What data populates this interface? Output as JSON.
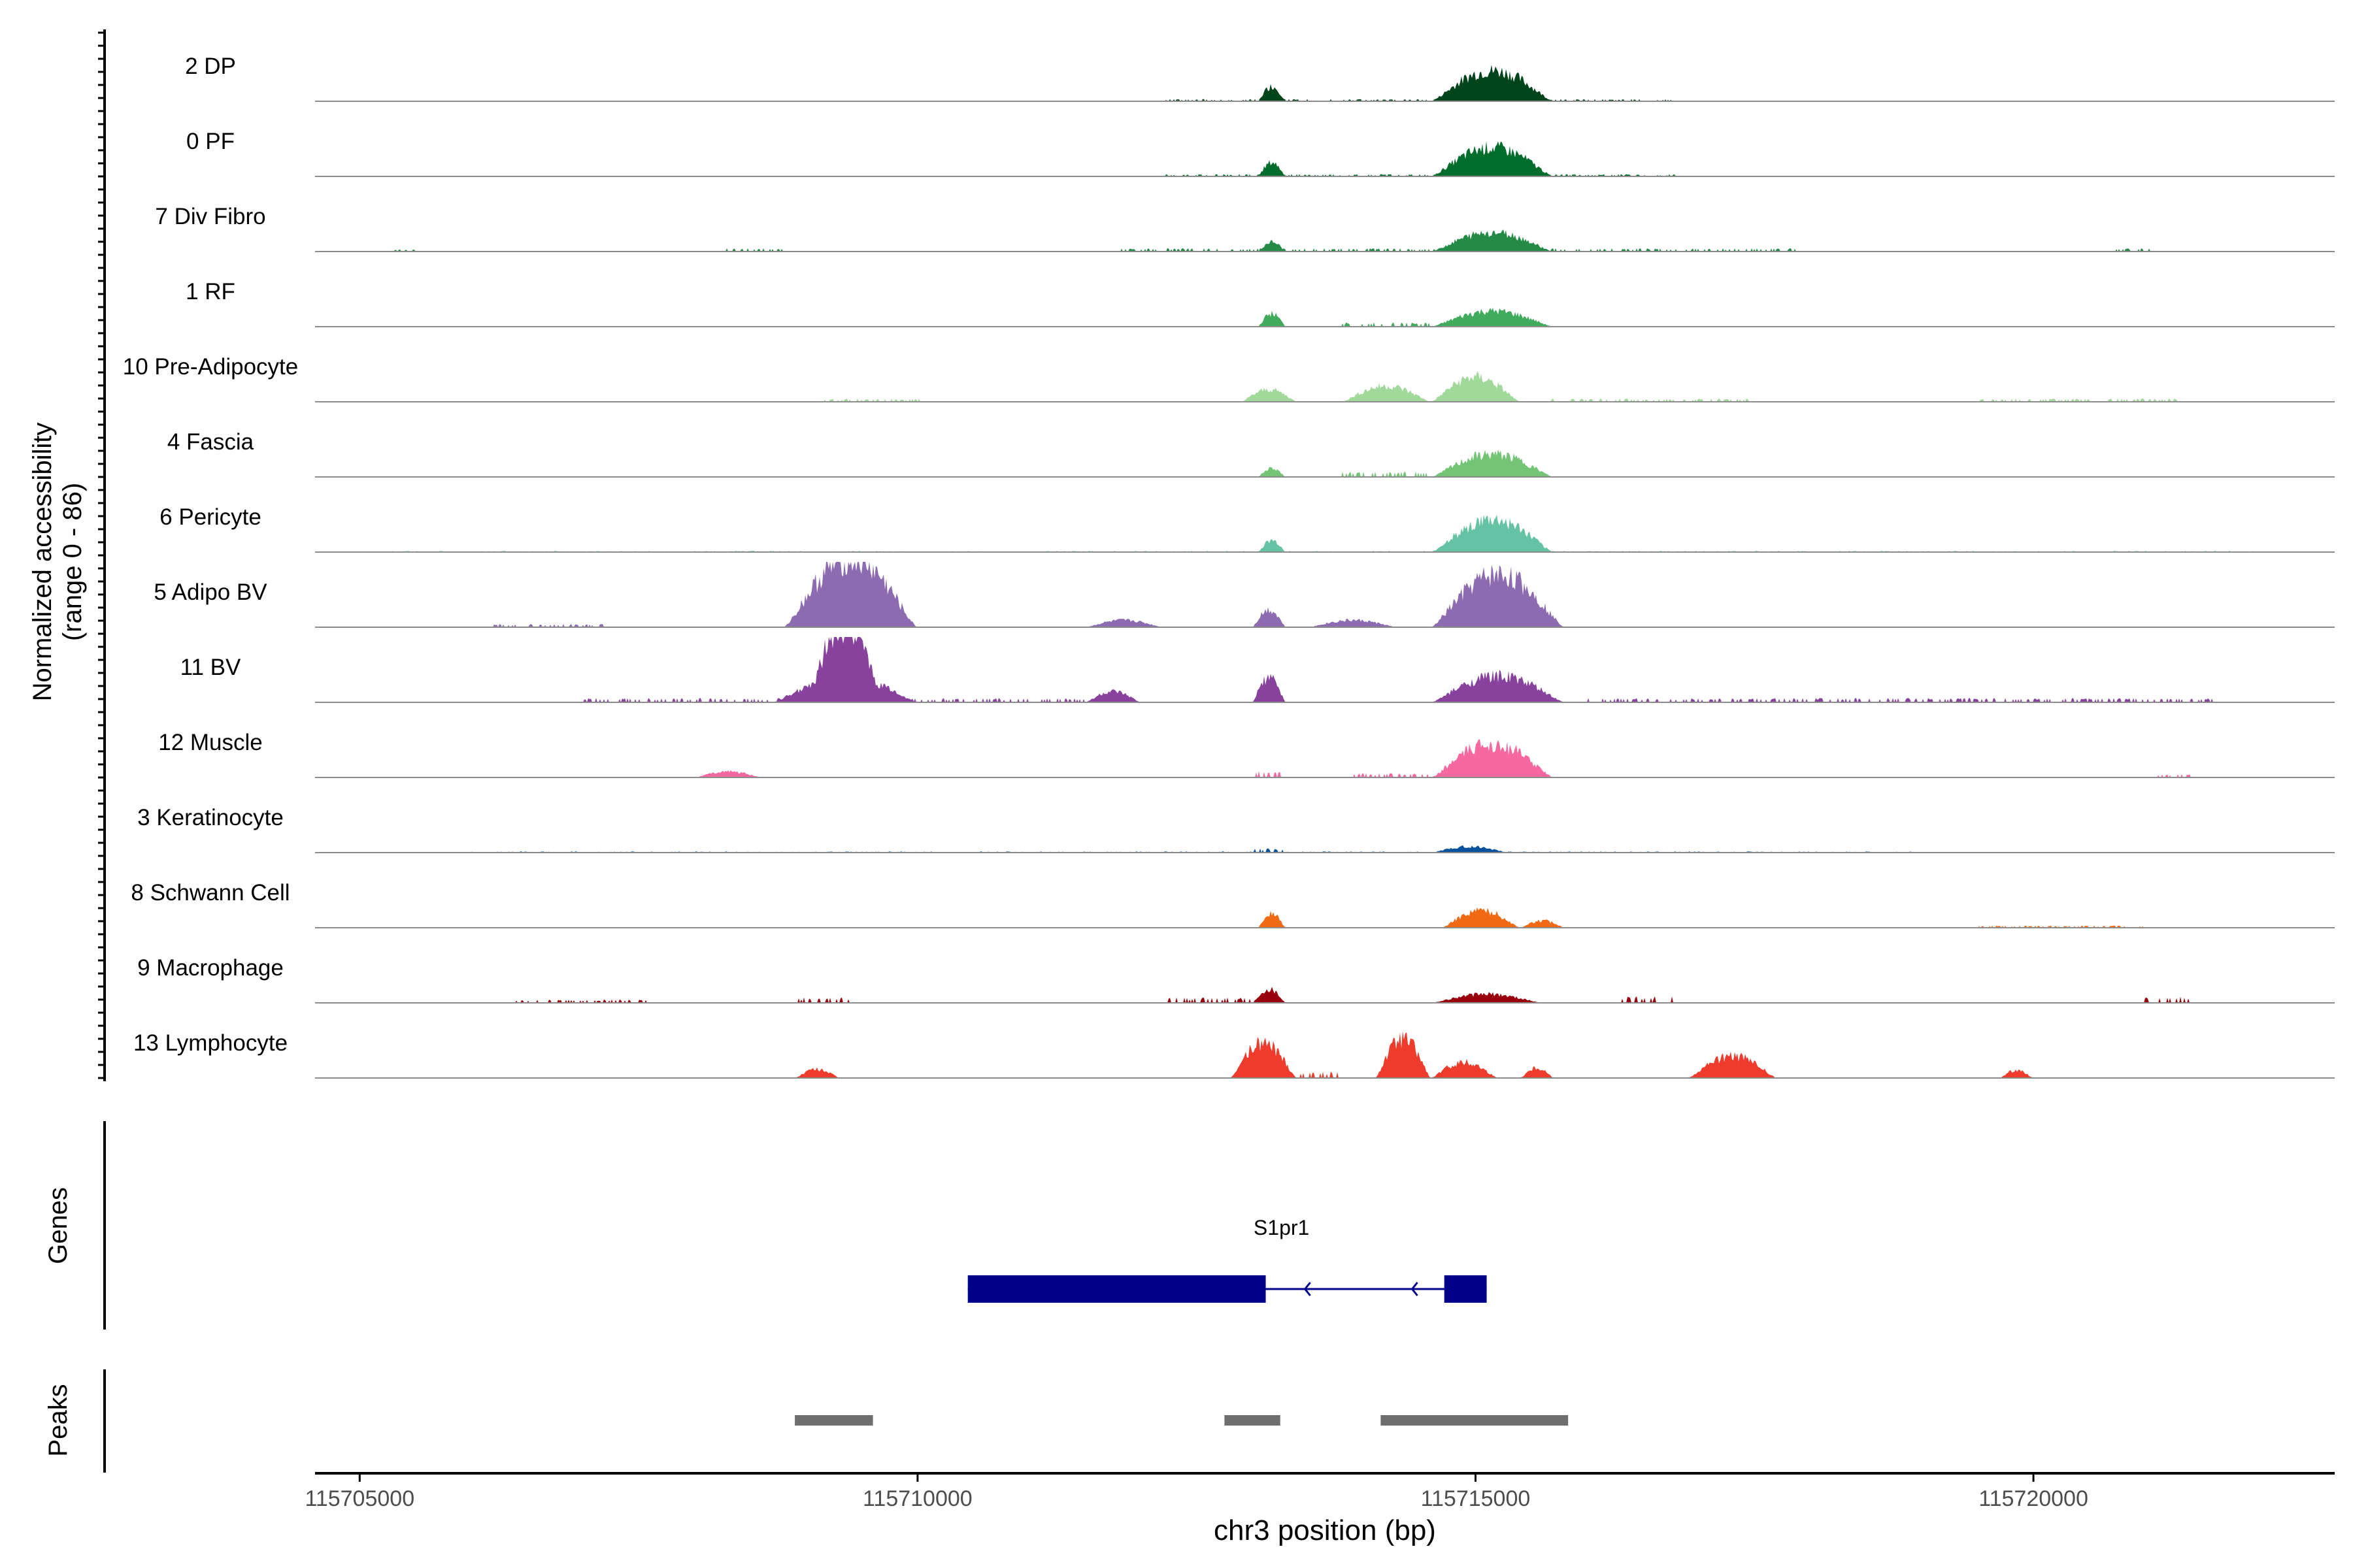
{
  "chart_data": {
    "type": "area",
    "title": "",
    "y_axis_label_line1": "Normalized accessibility",
    "y_axis_label_line2": "(range 0 - 86)",
    "y_range": [
      0,
      86
    ],
    "xlabel": "chr3 position (bp)",
    "xlim": [
      115704600,
      115722700
    ],
    "x_ticks": [
      115705000,
      115710000,
      115715000,
      115720000
    ],
    "x_tick_labels": [
      "115705000",
      "115710000",
      "115715000",
      "115720000"
    ],
    "tracks": [
      {
        "name": "2 DP",
        "color": "#00441b",
        "peaks": [
          [
            115713050,
            115713300,
            17
          ],
          [
            115714600,
            115715700,
            35
          ],
          [
            115712200,
            115716800,
            2
          ]
        ]
      },
      {
        "name": "0 PF",
        "color": "#006d2c",
        "peaks": [
          [
            115713050,
            115713300,
            16
          ],
          [
            115714600,
            115715700,
            33
          ],
          [
            115712200,
            115716800,
            2
          ]
        ]
      },
      {
        "name": "7 Div Fibro",
        "color": "#238b45",
        "peaks": [
          [
            115713050,
            115713300,
            11
          ],
          [
            115714600,
            115715700,
            22
          ],
          [
            115705300,
            115705500,
            2
          ],
          [
            115708200,
            115708800,
            3
          ],
          [
            115711800,
            115717900,
            3
          ],
          [
            115720700,
            115721100,
            3
          ]
        ]
      },
      {
        "name": "1 RF",
        "color": "#41ab5d",
        "peaks": [
          [
            115713050,
            115713300,
            15
          ],
          [
            115714600,
            115715700,
            18
          ],
          [
            115713800,
            115714600,
            4
          ]
        ]
      },
      {
        "name": "10 Pre-Adipocyte",
        "color": "#a1d99b",
        "peaks": [
          [
            115712900,
            115713400,
            14
          ],
          [
            115713800,
            115714600,
            18
          ],
          [
            115714600,
            115715400,
            28
          ],
          [
            115709100,
            115710100,
            3
          ],
          [
            115715600,
            115717500,
            3
          ],
          [
            115719500,
            115721300,
            3
          ]
        ]
      },
      {
        "name": "4 Fascia",
        "color": "#74c476",
        "peaks": [
          [
            115713050,
            115713300,
            10
          ],
          [
            115714600,
            115715700,
            26
          ],
          [
            115713800,
            115714600,
            5
          ]
        ]
      },
      {
        "name": "6 Pericyte",
        "color": "#66c2a4",
        "peaks": [
          [
            115713050,
            115713300,
            13
          ],
          [
            115714600,
            115715700,
            36
          ],
          [
            115704900,
            115722000,
            1
          ]
        ]
      },
      {
        "name": "5 Adipo BV",
        "color": "#8c6bb1",
        "peaks": [
          [
            115708800,
            115710000,
            78
          ],
          [
            115711500,
            115712200,
            8
          ],
          [
            115713000,
            115713300,
            20
          ],
          [
            115713500,
            115714300,
            8
          ],
          [
            115714600,
            115715800,
            60
          ],
          [
            115706200,
            115707200,
            3
          ]
        ]
      },
      {
        "name": "11 BV",
        "color": "#88419d",
        "peaks": [
          [
            115709000,
            115709700,
            90
          ],
          [
            115708700,
            115710000,
            30
          ],
          [
            115711500,
            115712000,
            12
          ],
          [
            115713000,
            115713300,
            28
          ],
          [
            115714600,
            115715800,
            30
          ],
          [
            115707000,
            115711500,
            4
          ],
          [
            115716000,
            115721600,
            4
          ]
        ]
      },
      {
        "name": "12 Muscle",
        "color": "#f768a1",
        "peaks": [
          [
            115714600,
            115715700,
            38
          ],
          [
            115708000,
            115708600,
            7
          ],
          [
            115713000,
            115713300,
            6
          ],
          [
            115713900,
            115714600,
            4
          ],
          [
            115721100,
            115721400,
            3
          ]
        ]
      },
      {
        "name": "3 Keratinocyte",
        "color": "#08519c",
        "peaks": [
          [
            115713000,
            115713300,
            4
          ],
          [
            115714600,
            115715300,
            7
          ],
          [
            115706000,
            115719000,
            1
          ]
        ]
      },
      {
        "name": "8 Schwann Cell",
        "color": "#f16913",
        "peaks": [
          [
            115713050,
            115713300,
            16
          ],
          [
            115714700,
            115715400,
            20
          ],
          [
            115715400,
            115715800,
            8
          ],
          [
            115719500,
            115721000,
            2
          ]
        ]
      },
      {
        "name": "9 Macrophage",
        "color": "#99000d",
        "peaks": [
          [
            115713000,
            115713300,
            16
          ],
          [
            115714600,
            115715600,
            10
          ],
          [
            115712200,
            115713000,
            5
          ],
          [
            115716300,
            115716800,
            6
          ],
          [
            115706400,
            115707600,
            3
          ],
          [
            115708900,
            115709400,
            5
          ],
          [
            115721000,
            115721400,
            6
          ]
        ]
      },
      {
        "name": "13 Lymphocyte",
        "color": "#ef3b2c",
        "peaks": [
          [
            115712800,
            115713400,
            40
          ],
          [
            115714100,
            115714600,
            45
          ],
          [
            115714600,
            115715200,
            18
          ],
          [
            115715400,
            115715700,
            12
          ],
          [
            115716900,
            115717700,
            25
          ],
          [
            115708900,
            115709300,
            10
          ],
          [
            115719700,
            115720000,
            9
          ],
          [
            115713400,
            115713800,
            6
          ]
        ]
      }
    ],
    "genes_panel_label": "Genes",
    "genes": [
      {
        "name": "S1pr1",
        "strand": "-",
        "start": 115710450,
        "end": 115715100,
        "exons": [
          [
            115710450,
            115713120
          ],
          [
            115714720,
            115715100
          ]
        ]
      }
    ],
    "peaks_panel_label": "Peaks",
    "peak_regions": [
      [
        115708900,
        115709600
      ],
      [
        115712750,
        115713250
      ],
      [
        115714150,
        115715830
      ]
    ]
  }
}
